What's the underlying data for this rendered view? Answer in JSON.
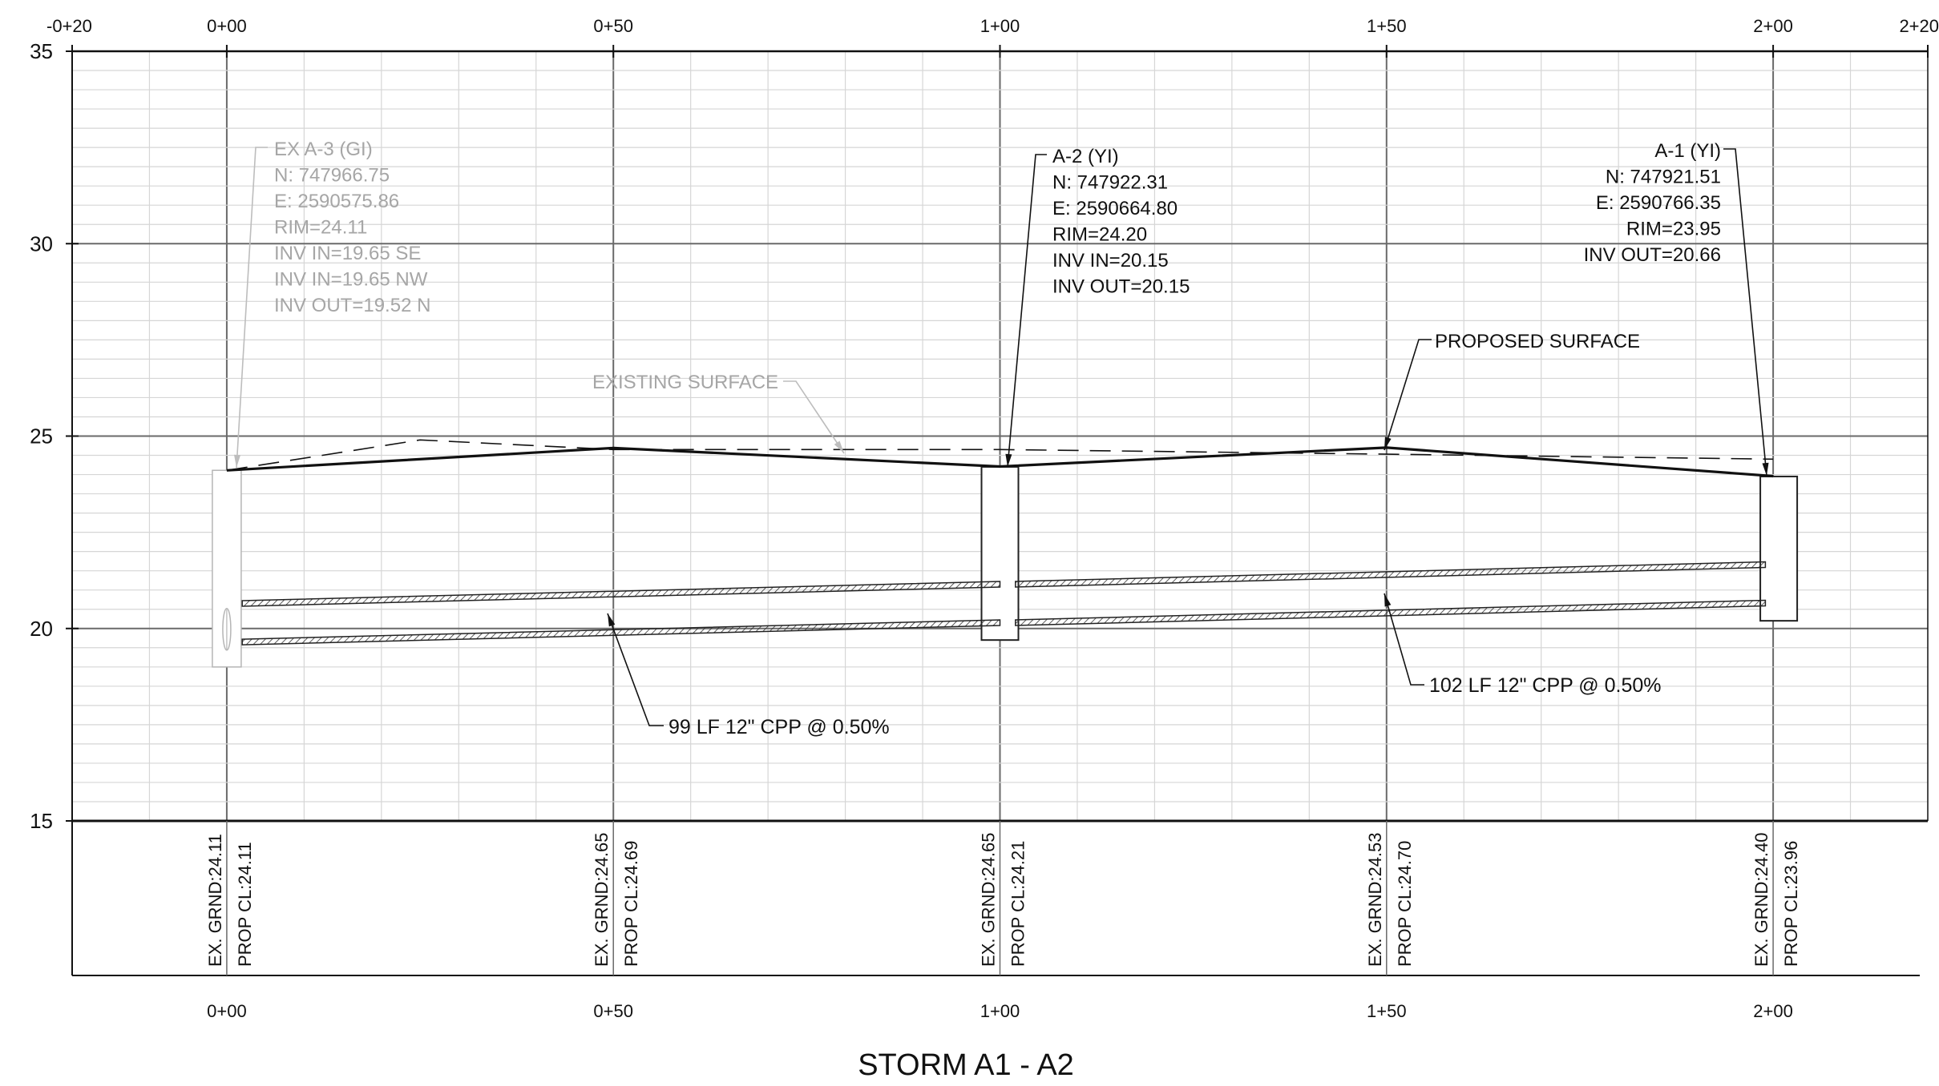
{
  "title": "STORM A1 - A2",
  "station_ticks_top": [
    "-0+20",
    "0+00",
    "0+50",
    "1+00",
    "1+50",
    "2+00",
    "2+20"
  ],
  "station_ticks_bottom": [
    "0+00",
    "0+50",
    "1+00",
    "1+50",
    "2+00"
  ],
  "elevation_ticks": [
    "35",
    "30",
    "25",
    "20",
    "15"
  ],
  "chart_data": {
    "type": "line",
    "title": "STORM A1 - A2",
    "x_range": [
      -20,
      220
    ],
    "y_range": [
      15,
      35
    ],
    "grid": true,
    "series": [
      {
        "name": "EXISTING SURFACE",
        "style": "dashed",
        "x": [
          0,
          25,
          50,
          100,
          150,
          200
        ],
        "y": [
          24.11,
          24.9,
          24.65,
          24.65,
          24.53,
          24.4
        ]
      },
      {
        "name": "PROPOSED SURFACE",
        "style": "solid",
        "x": [
          0,
          50,
          100,
          150,
          200
        ],
        "y": [
          24.11,
          24.69,
          24.21,
          24.7,
          23.96
        ]
      }
    ],
    "pipes": [
      {
        "label": "99 LF 12\" CPP @ 0.50%",
        "x0": 2,
        "x1": 100,
        "invert0": 19.65,
        "invert1": 20.15,
        "crown0": 20.65,
        "crown1": 21.15
      },
      {
        "label": "102 LF 12\" CPP @ 0.50%",
        "x0": 102,
        "x1": 199,
        "invert0": 20.15,
        "invert1": 20.66,
        "crown0": 21.15,
        "crown1": 21.66
      }
    ],
    "structures": [
      {
        "name": "EX A-3 (GI)",
        "existing": true,
        "station": 0,
        "rim": 24.11,
        "bottom": 19.0,
        "lines": [
          "EX A-3 (GI)",
          "N: 747966.75",
          "E: 2590575.86",
          "RIM=24.11",
          "INV IN=19.65 SE",
          "INV IN=19.65 NW",
          "INV OUT=19.52 N"
        ]
      },
      {
        "name": "A-2 (YI)",
        "existing": false,
        "station": 100,
        "rim": 24.2,
        "bottom": 19.7,
        "lines": [
          "A-2 (YI)",
          "N: 747922.31",
          "E: 2590664.80",
          "RIM=24.20",
          "INV IN=20.15",
          "INV OUT=20.15"
        ]
      },
      {
        "name": "A-1 (YI)",
        "existing": false,
        "station": 200,
        "rim": 23.95,
        "bottom": 20.2,
        "lines": [
          "A-1 (YI)",
          "N: 747921.51",
          "E: 2590766.35",
          "RIM=23.95",
          "INV OUT=20.66"
        ]
      }
    ],
    "surface_labels": {
      "existing": "EXISTING SURFACE",
      "proposed": "PROPOSED SURFACE"
    },
    "station_data": [
      {
        "station": 0,
        "ex_grnd": "EX. GRND:24.11",
        "prop_cl": "PROP CL:24.11"
      },
      {
        "station": 50,
        "ex_grnd": "EX. GRND:24.65",
        "prop_cl": "PROP CL:24.69"
      },
      {
        "station": 100,
        "ex_grnd": "EX. GRND:24.65",
        "prop_cl": "PROP CL:24.21"
      },
      {
        "station": 150,
        "ex_grnd": "EX. GRND:24.53",
        "prop_cl": "PROP CL:24.70"
      },
      {
        "station": 200,
        "ex_grnd": "EX. GRND:24.40",
        "prop_cl": "PROP CL:23.96"
      }
    ]
  }
}
